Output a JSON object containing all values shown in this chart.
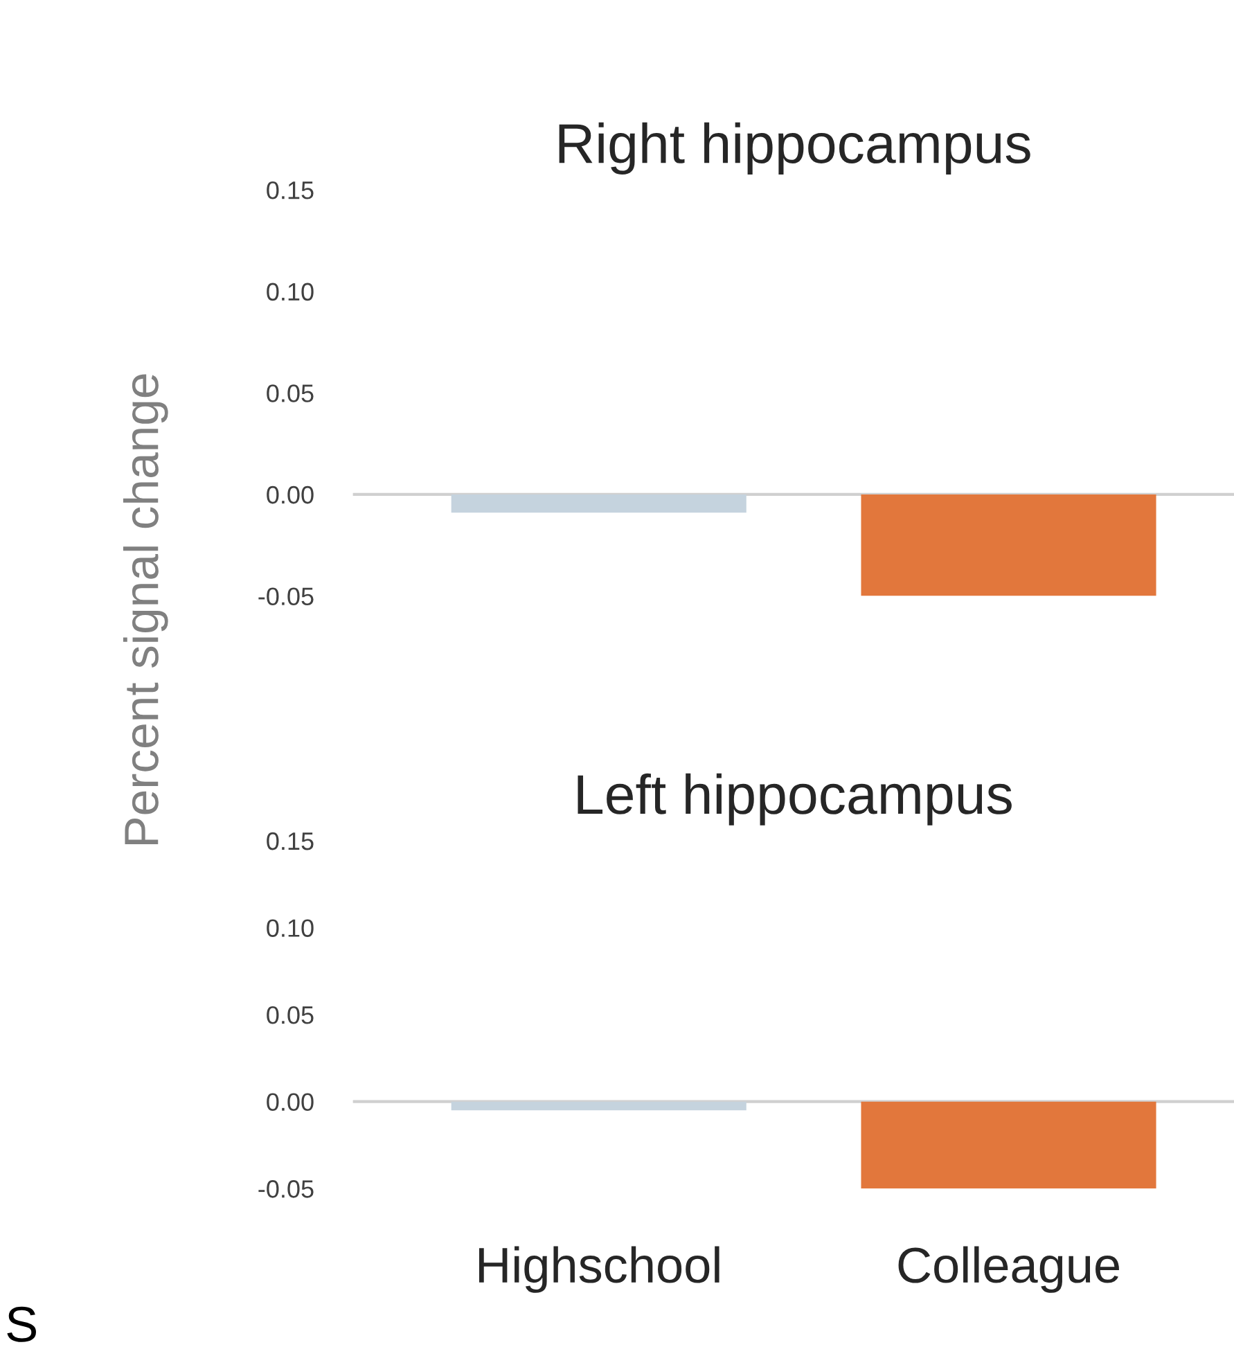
{
  "chart_data": [
    {
      "type": "bar",
      "title": "Right hippocampus",
      "ylabel": "Percent signal change",
      "categories": [
        null,
        null
      ],
      "values": [
        -0.009,
        -0.05
      ],
      "colors": [
        "#c5d3de",
        "#e2773c"
      ],
      "ylim": [
        -0.05,
        0.15
      ],
      "yticks": [
        {
          "value": -0.05,
          "label": "-0.05"
        },
        {
          "value": 0,
          "label": "0.00"
        },
        {
          "value": 0.05,
          "label": "0.05"
        },
        {
          "value": 0.1,
          "label": "0.10"
        },
        {
          "value": 0.15,
          "label": "0.15"
        }
      ],
      "tick_labels": "y",
      "grid": false,
      "legend": false,
      "ref_lines": [
        {
          "axis": "y",
          "value": 0,
          "color": "#d0d0d0"
        }
      ]
    },
    {
      "type": "bar",
      "title": "Left hippocampus",
      "categories": [
        "Highschool",
        "Colleague"
      ],
      "values": [
        -0.005,
        -0.05
      ],
      "colors": [
        "#c5d3de",
        "#e2773c"
      ],
      "ylim": [
        -0.05,
        0.15
      ],
      "yticks": [
        {
          "value": -0.05,
          "label": "-0.05"
        },
        {
          "value": 0,
          "label": "0.00"
        },
        {
          "value": 0.05,
          "label": "0.05"
        },
        {
          "value": 0.1,
          "label": "0.10"
        },
        {
          "value": 0.15,
          "label": "0.15"
        }
      ],
      "grid": false,
      "legend": false,
      "ref_lines": [
        {
          "axis": "y",
          "value": 0,
          "color": "#d0d0d0"
        }
      ],
      "annotations": [
        "S"
      ]
    }
  ]
}
